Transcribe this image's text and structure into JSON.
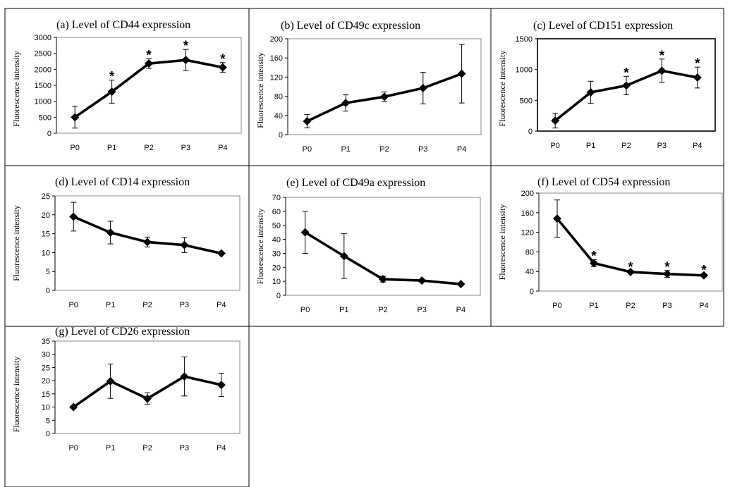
{
  "chart_data": [
    {
      "type": "line",
      "title": "(a) Level of CD44 expression",
      "ylabel": "Fluorescence intensity",
      "categories": [
        "P0",
        "P1",
        "P2",
        "P3",
        "P4"
      ],
      "yticks": [
        "0",
        "500",
        "1000",
        "1500",
        "2000",
        "2500",
        "3000"
      ],
      "ylim": [
        0,
        3000
      ],
      "values": [
        500,
        1300,
        2180,
        2290,
        2060
      ],
      "errors": [
        340,
        360,
        150,
        330,
        150
      ],
      "significant": [
        false,
        true,
        true,
        true,
        true
      ],
      "significance_symbol": "*",
      "grid": false
    },
    {
      "type": "line",
      "title": "(b) Level of CD49c expression",
      "ylabel": "Fluorescence intensity",
      "categories": [
        "P0",
        "P1",
        "P2",
        "P3",
        "P4"
      ],
      "yticks": [
        "0",
        "40",
        "80",
        "120",
        "160",
        "200"
      ],
      "ylim": [
        0,
        200
      ],
      "values": [
        28,
        66,
        79,
        97,
        127
      ],
      "errors": [
        14,
        17,
        10,
        33,
        61
      ],
      "significant": [
        false,
        false,
        false,
        false,
        false
      ],
      "significance_symbol": "*",
      "grid": false
    },
    {
      "type": "line",
      "title": "(c) Level of CD151 expression",
      "ylabel": "Fluorescence intensity",
      "categories": [
        "P0",
        "P1",
        "P2",
        "P3",
        "P4"
      ],
      "yticks": [
        "0",
        "500",
        "1000",
        "1500"
      ],
      "ylim": [
        0,
        1500
      ],
      "values": [
        170,
        630,
        740,
        980,
        870
      ],
      "errors": [
        120,
        180,
        150,
        190,
        170
      ],
      "significant": [
        false,
        false,
        true,
        true,
        true
      ],
      "significance_symbol": "*",
      "grid": false
    },
    {
      "type": "line",
      "title": "(d) Level of CD14 expression",
      "ylabel": "Fluorescence intensity",
      "categories": [
        "P0",
        "P1",
        "P2",
        "P3",
        "P4"
      ],
      "yticks": [
        "0",
        "5",
        "10",
        "15",
        "20",
        "25"
      ],
      "ylim": [
        0,
        25
      ],
      "values": [
        19.5,
        15.3,
        12.8,
        12.0,
        9.8
      ],
      "errors": [
        3.8,
        3.0,
        1.3,
        2.0,
        0.3
      ],
      "significant": [
        false,
        false,
        false,
        false,
        false
      ],
      "significance_symbol": "*",
      "grid": false
    },
    {
      "type": "line",
      "title": "(e) Level of CD49a expression",
      "ylabel": "Fluorescence intensity",
      "categories": [
        "P0",
        "P1",
        "P2",
        "P3",
        "P4"
      ],
      "yticks": [
        "0",
        "10",
        "20",
        "30",
        "40",
        "50",
        "60",
        "70"
      ],
      "ylim": [
        0,
        70
      ],
      "values": [
        45,
        28,
        11.5,
        10.5,
        8
      ],
      "errors": [
        15,
        16,
        2,
        1,
        0.5
      ],
      "significant": [
        false,
        false,
        false,
        false,
        false
      ],
      "significance_symbol": "*",
      "grid": false
    },
    {
      "type": "line",
      "title": "(f) Level of CD54 expression",
      "ylabel": "Fluorescence intensity",
      "categories": [
        "P0",
        "P1",
        "P2",
        "P3",
        "P4"
      ],
      "yticks": [
        "0",
        "40",
        "80",
        "120",
        "160",
        "200"
      ],
      "ylim": [
        0,
        200
      ],
      "values": [
        148,
        57,
        39,
        35,
        32
      ],
      "errors": [
        38,
        7,
        3,
        7,
        3
      ],
      "significant": [
        false,
        true,
        true,
        true,
        true
      ],
      "significance_symbol": "*",
      "grid": false
    },
    {
      "type": "line",
      "title": "(g) Level of CD26 expression",
      "ylabel": "Fluorescence intensity",
      "categories": [
        "P0",
        "P1",
        "P2",
        "P3",
        "P4"
      ],
      "yticks": [
        "0",
        "5",
        "10",
        "15",
        "20",
        "25",
        "30",
        "35"
      ],
      "ylim": [
        0,
        35
      ],
      "values": [
        10,
        19.8,
        13.2,
        21.6,
        18.4
      ],
      "errors": [
        0.5,
        6.5,
        2.2,
        7.4,
        4.4
      ],
      "significant": [
        false,
        false,
        false,
        false,
        false
      ],
      "significance_symbol": "*",
      "grid": false
    }
  ]
}
